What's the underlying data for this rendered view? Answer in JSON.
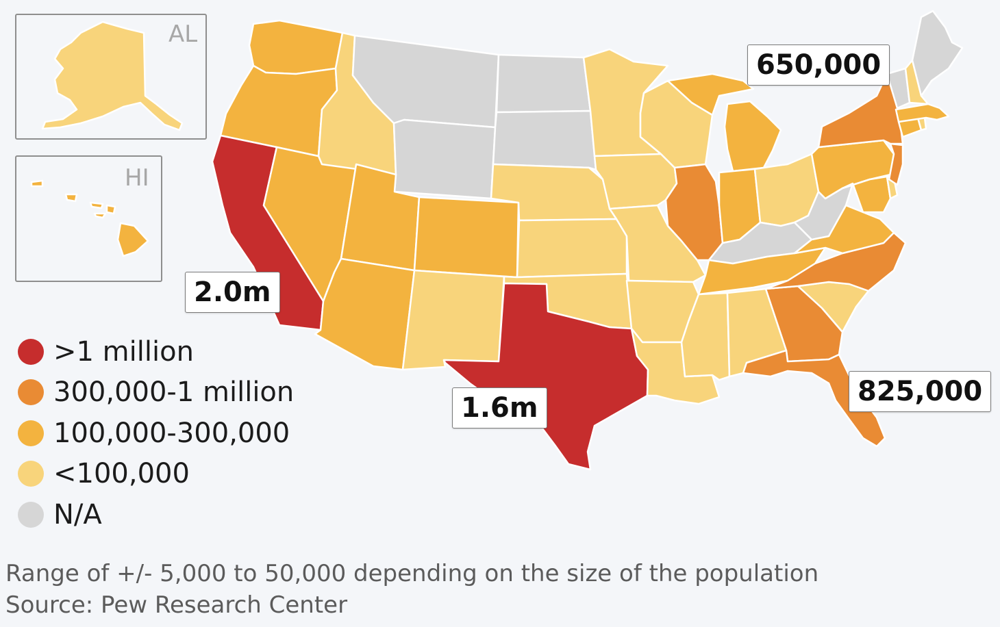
{
  "colors": {
    "over_1m": "#c62d2d",
    "r300k_1m": "#e98b34",
    "r100k_300k": "#f3b33f",
    "under_100k": "#f8d47b",
    "na": "#d6d6d6",
    "background": "#f4f6f9"
  },
  "insets": {
    "alaska_label": "AL",
    "hawaii_label": "HI"
  },
  "callouts": {
    "california": "2.0m",
    "texas": "1.6m",
    "new_york": "650,000",
    "florida": "825,000"
  },
  "legend": [
    {
      "label": ">1 million",
      "color_key": "over_1m"
    },
    {
      "label": "300,000-1 million",
      "color_key": "r300k_1m"
    },
    {
      "label": "100,000-300,000",
      "color_key": "r100k_300k"
    },
    {
      "label": "<100,000",
      "color_key": "under_100k"
    },
    {
      "label": "N/A",
      "color_key": "na"
    }
  ],
  "regions": [
    {
      "name": "Alaska",
      "category": "under_100k"
    },
    {
      "name": "Hawaii",
      "category": "r100k_300k"
    },
    {
      "name": "Washington",
      "category": "r100k_300k"
    },
    {
      "name": "Oregon",
      "category": "r100k_300k"
    },
    {
      "name": "California",
      "category": "over_1m"
    },
    {
      "name": "Nevada",
      "category": "r100k_300k"
    },
    {
      "name": "Idaho",
      "category": "under_100k"
    },
    {
      "name": "Montana",
      "category": "na"
    },
    {
      "name": "Wyoming",
      "category": "na"
    },
    {
      "name": "Utah",
      "category": "r100k_300k"
    },
    {
      "name": "Arizona",
      "category": "r100k_300k"
    },
    {
      "name": "Colorado",
      "category": "r100k_300k"
    },
    {
      "name": "New Mexico",
      "category": "under_100k"
    },
    {
      "name": "North Dakota",
      "category": "na"
    },
    {
      "name": "South Dakota",
      "category": "na"
    },
    {
      "name": "Nebraska",
      "category": "under_100k"
    },
    {
      "name": "Kansas",
      "category": "under_100k"
    },
    {
      "name": "Oklahoma",
      "category": "under_100k"
    },
    {
      "name": "Texas",
      "category": "over_1m"
    },
    {
      "name": "Minnesota",
      "category": "under_100k"
    },
    {
      "name": "Iowa",
      "category": "under_100k"
    },
    {
      "name": "Missouri",
      "category": "under_100k"
    },
    {
      "name": "Arkansas",
      "category": "under_100k"
    },
    {
      "name": "Louisiana",
      "category": "under_100k"
    },
    {
      "name": "Wisconsin",
      "category": "under_100k"
    },
    {
      "name": "Illinois",
      "category": "r300k_1m"
    },
    {
      "name": "Michigan",
      "category": "r100k_300k"
    },
    {
      "name": "Indiana",
      "category": "r100k_300k"
    },
    {
      "name": "Ohio",
      "category": "under_100k"
    },
    {
      "name": "Kentucky",
      "category": "na"
    },
    {
      "name": "Tennessee",
      "category": "r100k_300k"
    },
    {
      "name": "Mississippi",
      "category": "under_100k"
    },
    {
      "name": "Alabama",
      "category": "under_100k"
    },
    {
      "name": "Georgia",
      "category": "r300k_1m"
    },
    {
      "name": "Florida",
      "category": "r300k_1m"
    },
    {
      "name": "South Carolina",
      "category": "under_100k"
    },
    {
      "name": "North Carolina",
      "category": "r300k_1m"
    },
    {
      "name": "Virginia",
      "category": "r100k_300k"
    },
    {
      "name": "West Virginia",
      "category": "na"
    },
    {
      "name": "Pennsylvania",
      "category": "r100k_300k"
    },
    {
      "name": "New York",
      "category": "r300k_1m"
    },
    {
      "name": "New Jersey",
      "category": "r300k_1m"
    },
    {
      "name": "Maryland",
      "category": "r100k_300k"
    },
    {
      "name": "Delaware",
      "category": "under_100k"
    },
    {
      "name": "Connecticut",
      "category": "r100k_300k"
    },
    {
      "name": "Rhode Island",
      "category": "under_100k"
    },
    {
      "name": "Massachusetts",
      "category": "r100k_300k"
    },
    {
      "name": "Vermont",
      "category": "na"
    },
    {
      "name": "New Hampshire",
      "category": "under_100k"
    },
    {
      "name": "Maine",
      "category": "na"
    }
  ],
  "footnotes": {
    "range": "Range of +/- 5,000 to 50,000 depending on the size of the population",
    "source": "Source: Pew Research Center"
  }
}
